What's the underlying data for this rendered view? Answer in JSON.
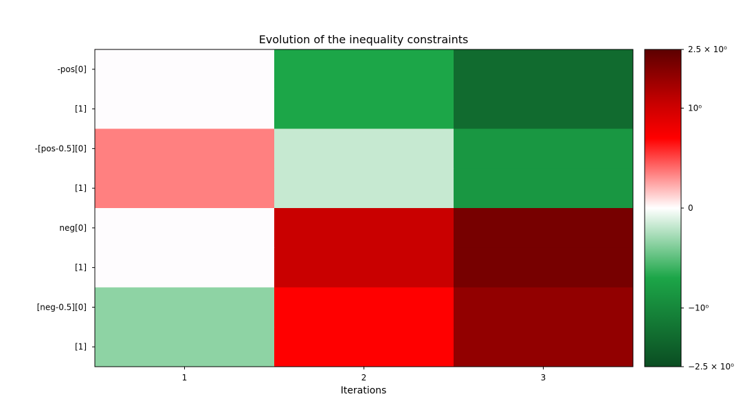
{
  "chart_data": {
    "type": "heatmap",
    "title": "Evolution of the inequality constraints",
    "xlabel": "Iterations",
    "ylabel": "",
    "x_categories": [
      "1",
      "2",
      "3"
    ],
    "y_categories": [
      "-pos[0]",
      "[1]",
      "-[pos-0.5][0]",
      "[1]",
      "neg[0]",
      "[1]",
      "[neg-0.5][0]",
      "[1]"
    ],
    "values": [
      [
        0.0,
        -1.0,
        -2.0
      ],
      [
        0.0,
        -1.0,
        -2.0
      ],
      [
        0.5,
        -0.25,
        -1.25
      ],
      [
        0.5,
        -0.25,
        -1.25
      ],
      [
        0.0,
        1.5,
        2.25
      ],
      [
        0.0,
        1.5,
        2.25
      ],
      [
        -0.5,
        1.0,
        2.0
      ],
      [
        -0.5,
        1.0,
        2.0
      ]
    ],
    "colorbar": {
      "scale": "symlog",
      "range": [
        -2.5,
        2.5
      ],
      "tick_labels": [
        "2.5 × 10⁰",
        "10⁰",
        "0",
        "−10⁰",
        "−2.5 × 10⁰"
      ],
      "tick_values": [
        2.5,
        1,
        0,
        -1,
        -2.5
      ],
      "colormap": [
        "#0b4d22",
        "#1ca648",
        "#ffffff",
        "#ff0000",
        "#5c0000"
      ]
    }
  }
}
